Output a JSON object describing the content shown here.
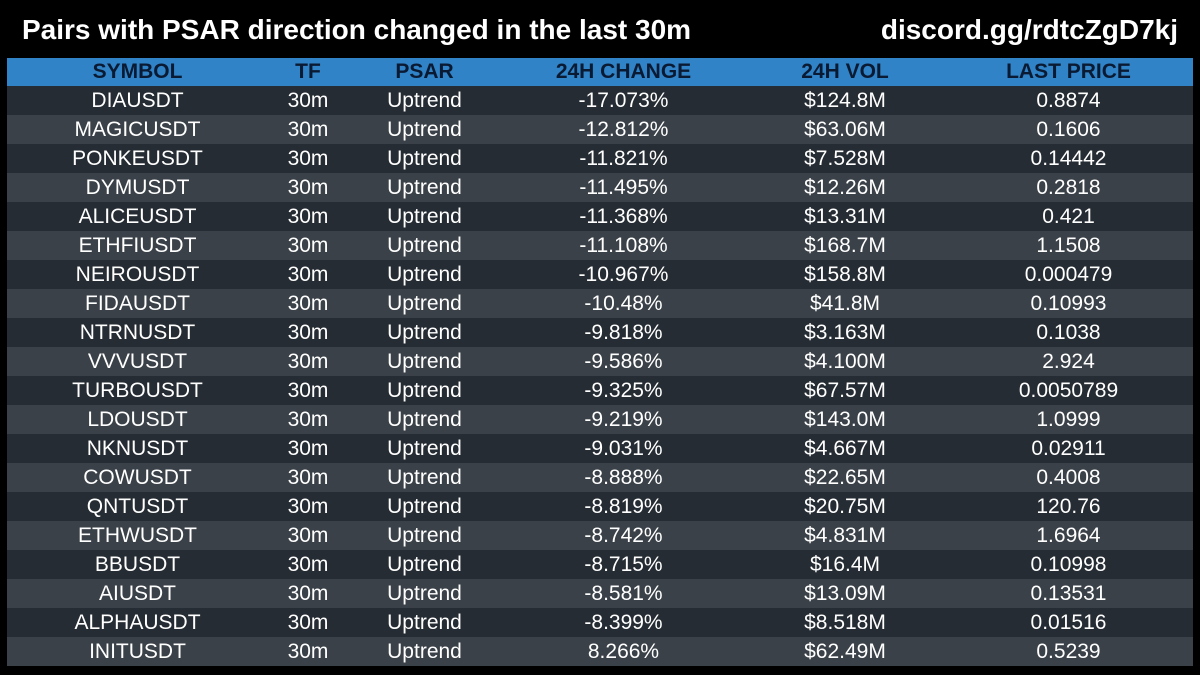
{
  "header": {
    "title": "Pairs with PSAR direction changed in the last 30m",
    "link": "discord.gg/rdtcZgD7kj"
  },
  "table": {
    "columns": [
      "SYMBOL",
      "TF",
      "PSAR",
      "24H CHANGE",
      "24H VOL",
      "LAST PRICE"
    ],
    "rows": [
      [
        "DIAUSDT",
        "30m",
        "Uptrend",
        "-17.073%",
        "$124.8M",
        "0.8874"
      ],
      [
        "MAGICUSDT",
        "30m",
        "Uptrend",
        "-12.812%",
        "$63.06M",
        "0.1606"
      ],
      [
        "PONKEUSDT",
        "30m",
        "Uptrend",
        "-11.821%",
        "$7.528M",
        "0.14442"
      ],
      [
        "DYMUSDT",
        "30m",
        "Uptrend",
        "-11.495%",
        "$12.26M",
        "0.2818"
      ],
      [
        "ALICEUSDT",
        "30m",
        "Uptrend",
        "-11.368%",
        "$13.31M",
        "0.421"
      ],
      [
        "ETHFIUSDT",
        "30m",
        "Uptrend",
        "-11.108%",
        "$168.7M",
        "1.1508"
      ],
      [
        "NEIROUSDT",
        "30m",
        "Uptrend",
        "-10.967%",
        "$158.8M",
        "0.000479"
      ],
      [
        "FIDAUSDT",
        "30m",
        "Uptrend",
        "-10.48%",
        "$41.8M",
        "0.10993"
      ],
      [
        "NTRNUSDT",
        "30m",
        "Uptrend",
        "-9.818%",
        "$3.163M",
        "0.1038"
      ],
      [
        "VVVUSDT",
        "30m",
        "Uptrend",
        "-9.586%",
        "$4.100M",
        "2.924"
      ],
      [
        "TURBOUSDT",
        "30m",
        "Uptrend",
        "-9.325%",
        "$67.57M",
        "0.0050789"
      ],
      [
        "LDOUSDT",
        "30m",
        "Uptrend",
        "-9.219%",
        "$143.0M",
        "1.0999"
      ],
      [
        "NKNUSDT",
        "30m",
        "Uptrend",
        "-9.031%",
        "$4.667M",
        "0.02911"
      ],
      [
        "COWUSDT",
        "30m",
        "Uptrend",
        "-8.888%",
        "$22.65M",
        "0.4008"
      ],
      [
        "QNTUSDT",
        "30m",
        "Uptrend",
        "-8.819%",
        "$20.75M",
        "120.76"
      ],
      [
        "ETHWUSDT",
        "30m",
        "Uptrend",
        "-8.742%",
        "$4.831M",
        "1.6964"
      ],
      [
        "BBUSDT",
        "30m",
        "Uptrend",
        "-8.715%",
        "$16.4M",
        "0.10998"
      ],
      [
        "AIUSDT",
        "30m",
        "Uptrend",
        "-8.581%",
        "$13.09M",
        "0.13531"
      ],
      [
        "ALPHAUSDT",
        "30m",
        "Uptrend",
        "-8.399%",
        "$8.518M",
        "0.01516"
      ],
      [
        "INITUSDT",
        "30m",
        "Uptrend",
        "8.266%",
        "$62.49M",
        "0.5239"
      ]
    ]
  },
  "colors": {
    "background": "#000000",
    "header_row": "#2f83c6",
    "header_text": "#0b1a33",
    "row_dark": "#252c33",
    "row_light": "#3a4148",
    "text": "#ffffff"
  }
}
